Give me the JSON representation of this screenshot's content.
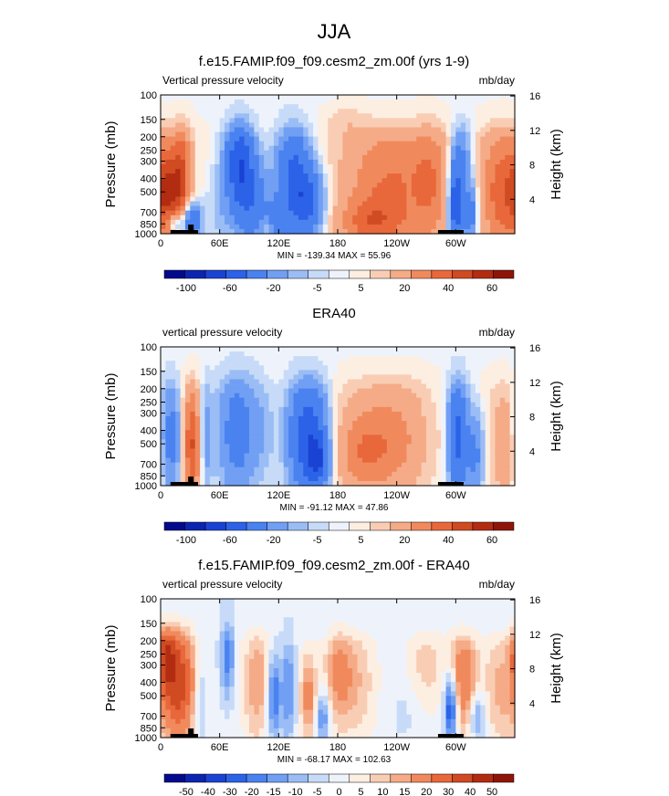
{
  "page_title": "JJA",
  "chart_data": [
    {
      "type": "heatmap",
      "title": "f.e15.FAMIP.f09_f09.cesm2_zm.00f (yrs 1-9)",
      "left_label": "Vertical pressure velocity",
      "right_label": "mb/day",
      "ylabel": "Pressure (mb)",
      "ylabel_right": "Height (km)",
      "x_ticks": [
        "0",
        "60E",
        "120E",
        "180",
        "120W",
        "60W"
      ],
      "y_ticks": [
        "100",
        "150",
        "200",
        "250",
        "300",
        "400",
        "500",
        "700",
        "850",
        "1000"
      ],
      "height_ticks": [
        "16",
        "12",
        "8",
        "4"
      ],
      "stats": "MIN = -139.34  MAX =  55.96",
      "colorbar_labels": [
        "-100",
        "-60",
        "-20",
        "-5",
        "5",
        "20",
        "40",
        "60"
      ],
      "colorbar_colors": [
        "#040a8c",
        "#0d24b0",
        "#1a43d4",
        "#2c62e8",
        "#4a82f0",
        "#719ff3",
        "#9bbdf5",
        "#c7dbf8",
        "#eef3fb",
        "#fdeee2",
        "#f9cdb4",
        "#f5ab87",
        "#f08a5d",
        "#e8683b",
        "#d04a22",
        "#b22c12",
        "#8e1608"
      ],
      "ylim": [
        1000,
        100
      ],
      "xlim": [
        0,
        360
      ]
    },
    {
      "type": "heatmap",
      "title": "ERA40",
      "left_label": "vertical pressure velocity",
      "right_label": "mb/day",
      "ylabel": "Pressure (mb)",
      "ylabel_right": "Height (km)",
      "x_ticks": [
        "0",
        "60E",
        "120E",
        "180",
        "120W",
        "60W"
      ],
      "y_ticks": [
        "100",
        "150",
        "200",
        "250",
        "300",
        "400",
        "500",
        "700",
        "850",
        "1000"
      ],
      "height_ticks": [
        "16",
        "12",
        "8",
        "4"
      ],
      "stats": "MIN = -91.12  MAX =  47.86",
      "colorbar_labels": [
        "-100",
        "-60",
        "-20",
        "-5",
        "5",
        "20",
        "40",
        "60"
      ],
      "colorbar_colors": [
        "#040a8c",
        "#0d24b0",
        "#1a43d4",
        "#2c62e8",
        "#4a82f0",
        "#719ff3",
        "#9bbdf5",
        "#c7dbf8",
        "#eef3fb",
        "#fdeee2",
        "#f9cdb4",
        "#f5ab87",
        "#f08a5d",
        "#e8683b",
        "#d04a22",
        "#b22c12",
        "#8e1608"
      ],
      "ylim": [
        1000,
        100
      ],
      "xlim": [
        0,
        360
      ]
    },
    {
      "type": "heatmap",
      "title": "f.e15.FAMIP.f09_f09.cesm2_zm.00f - ERA40",
      "left_label": "vertical pressure velocity",
      "right_label": "mb/day",
      "ylabel": "Pressure (mb)",
      "ylabel_right": "Height (km)",
      "x_ticks": [
        "0",
        "60E",
        "120E",
        "180",
        "120W",
        "60W"
      ],
      "y_ticks": [
        "100",
        "150",
        "200",
        "250",
        "300",
        "400",
        "500",
        "700",
        "850",
        "1000"
      ],
      "height_ticks": [
        "16",
        "12",
        "8",
        "4"
      ],
      "stats": "MIN = -68.17  MAX = 102.63",
      "colorbar_labels": [
        "-50",
        "-40",
        "-30",
        "-20",
        "-15",
        "-10",
        "-5",
        "0",
        "5",
        "10",
        "15",
        "20",
        "30",
        "40",
        "50"
      ],
      "colorbar_colors": [
        "#040a8c",
        "#0d24b0",
        "#1a43d4",
        "#2c62e8",
        "#4a82f0",
        "#719ff3",
        "#9bbdf5",
        "#c7dbf8",
        "#eef3fb",
        "#fdeee2",
        "#f9cdb4",
        "#f5ab87",
        "#f08a5d",
        "#e8683b",
        "#d04a22",
        "#b22c12",
        "#8e1608"
      ],
      "ylim": [
        1000,
        100
      ],
      "xlim": [
        0,
        360
      ]
    }
  ]
}
